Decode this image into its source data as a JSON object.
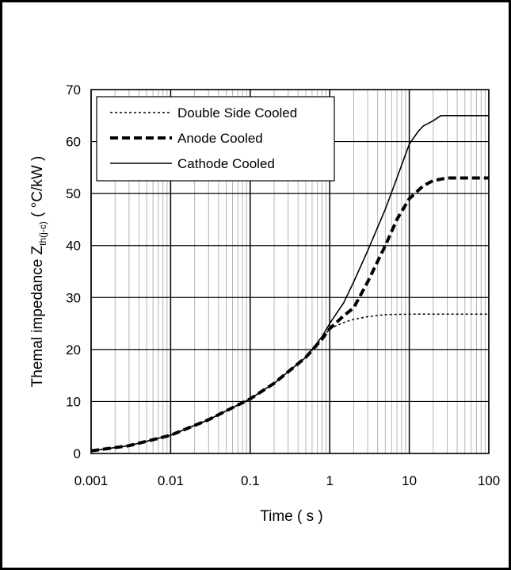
{
  "chart_data": {
    "type": "line",
    "xlabel": "Time ( s )",
    "ylabel_main": "Themal impedance Z",
    "ylabel_sub": "th(j-c)",
    "ylabel_unit": " ( °C/kW )",
    "xscale": "log",
    "xlim": [
      0.001,
      100
    ],
    "ylim": [
      0,
      70
    ],
    "x_ticks": [
      "0.001",
      "0.01",
      "0.1",
      "1",
      "10",
      "100"
    ],
    "y_ticks": [
      "0",
      "10",
      "20",
      "30",
      "40",
      "50",
      "60",
      "70"
    ],
    "grid": true,
    "legend_position": "top-left",
    "series": [
      {
        "name": "Double Side Cooled",
        "style": "dotted",
        "x": [
          0.001,
          0.003,
          0.01,
          0.03,
          0.1,
          0.2,
          0.5,
          0.8,
          1,
          1.5,
          2,
          3,
          5,
          10,
          20,
          50,
          100
        ],
        "y": [
          0.5,
          1.5,
          3.5,
          6.5,
          10.5,
          13.5,
          18.5,
          22,
          24,
          25.2,
          25.8,
          26.3,
          26.7,
          26.8,
          26.8,
          26.8,
          26.8
        ]
      },
      {
        "name": "Anode Cooled",
        "style": "dashed",
        "x": [
          0.001,
          0.003,
          0.01,
          0.03,
          0.1,
          0.2,
          0.5,
          0.8,
          1,
          1.5,
          2,
          3,
          5,
          7,
          10,
          15,
          20,
          30,
          50,
          100
        ],
        "y": [
          0.5,
          1.5,
          3.5,
          6.5,
          10.5,
          13.5,
          18.5,
          22,
          24,
          26.5,
          28,
          33,
          40,
          45,
          49,
          51.5,
          52.5,
          53,
          53,
          53
        ]
      },
      {
        "name": "Cathode Cooled",
        "style": "solid",
        "x": [
          0.001,
          0.003,
          0.01,
          0.03,
          0.1,
          0.2,
          0.5,
          0.8,
          1,
          1.5,
          2,
          3,
          5,
          7,
          10,
          13,
          15,
          20,
          25,
          30,
          50,
          100
        ],
        "y": [
          0.5,
          1.5,
          3.5,
          6.5,
          10.5,
          13.5,
          18.5,
          22.5,
          25,
          29,
          33,
          39,
          47,
          53,
          59.5,
          62,
          63,
          64,
          65,
          65,
          65,
          65
        ]
      }
    ]
  }
}
